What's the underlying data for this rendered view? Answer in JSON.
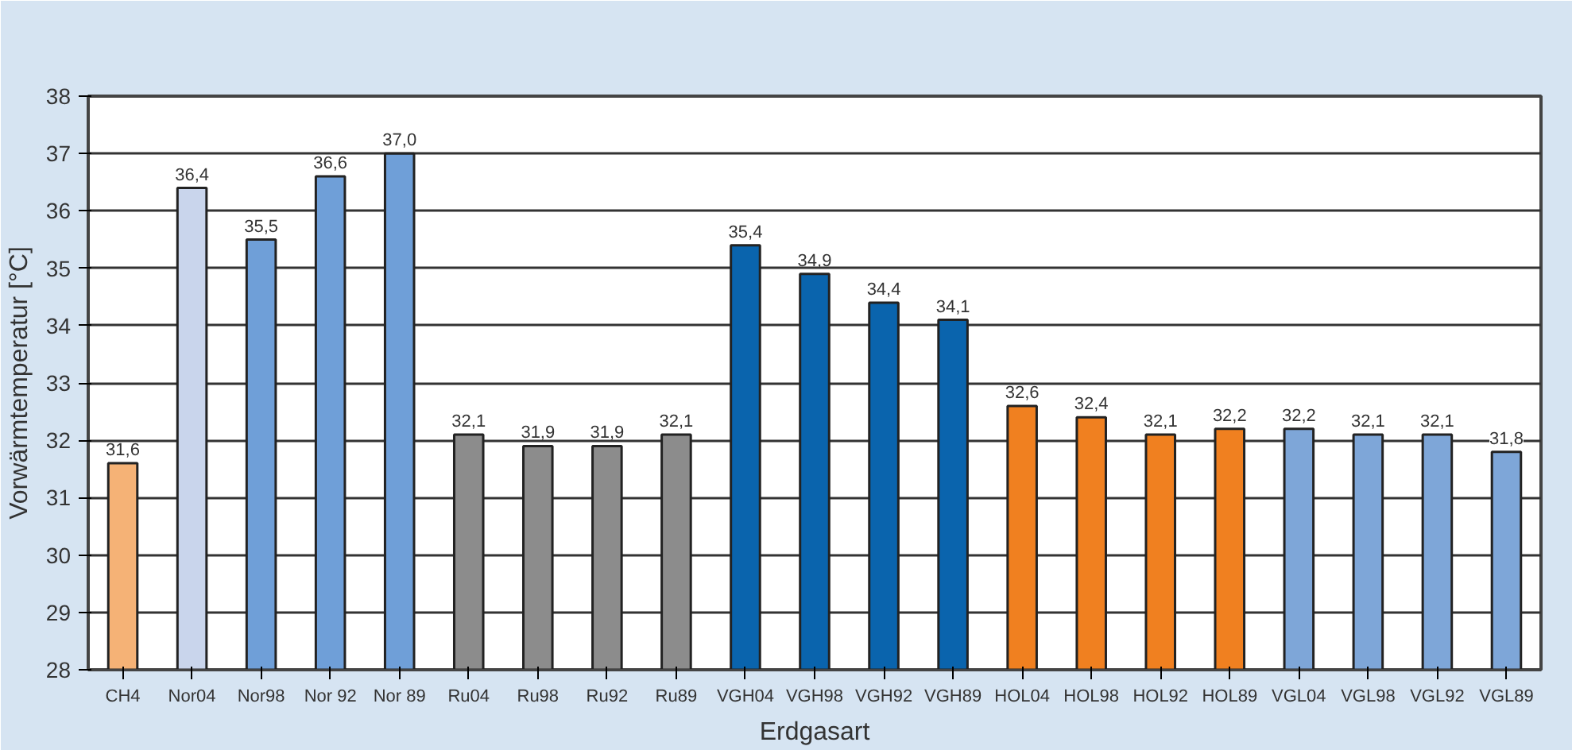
{
  "chart_data": {
    "type": "bar",
    "xlabel": "Erdgasart",
    "ylabel": "Vorwärmtemperatur [°C]",
    "categories": [
      "CH4",
      "Nor04",
      "Nor98",
      "Nor 92",
      "Nor 89",
      "Ru04",
      "Ru98",
      "Ru92",
      "Ru89",
      "VGH04",
      "VGH98",
      "VGH92",
      "VGH89",
      "HOL04",
      "HOL98",
      "HOL92",
      "HOL89",
      "VGL04",
      "VGL98",
      "VGL92",
      "VGL89"
    ],
    "values": [
      31.6,
      36.4,
      35.5,
      36.6,
      37.0,
      32.1,
      31.9,
      31.9,
      32.1,
      35.4,
      34.9,
      34.4,
      34.1,
      32.6,
      32.4,
      32.1,
      32.2,
      32.2,
      32.1,
      32.1,
      31.8
    ],
    "value_labels": [
      "31,6",
      "36,4",
      "35,5",
      "36,6",
      "37,0",
      "32,1",
      "31,9",
      "31,9",
      "32,1",
      "35,4",
      "34,9",
      "34,4",
      "34,1",
      "32,6",
      "32,4",
      "32,1",
      "32,2",
      "32,2",
      "32,1",
      "32,1",
      "31,8"
    ],
    "colors": [
      "#f5b276",
      "#c9d5ec",
      "#6f9fd8",
      "#6f9fd8",
      "#6f9fd8",
      "#8c8c8c",
      "#8c8c8c",
      "#8c8c8c",
      "#8c8c8c",
      "#0a64ad",
      "#0a64ad",
      "#0a64ad",
      "#0a64ad",
      "#f08020",
      "#f08020",
      "#f08020",
      "#f08020",
      "#7ea6d8",
      "#7ea6d8",
      "#7ea6d8",
      "#7ea6d8"
    ],
    "ylim": [
      28,
      38
    ],
    "yticks": [
      28,
      29,
      30,
      31,
      32,
      33,
      34,
      35,
      36,
      37,
      38
    ],
    "grid": "y"
  }
}
